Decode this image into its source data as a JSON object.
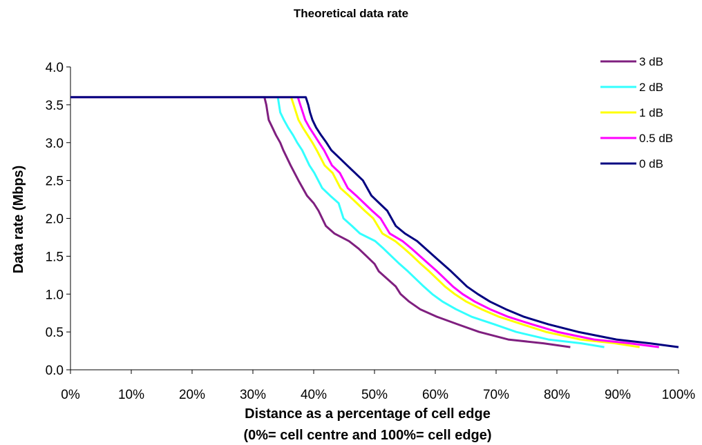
{
  "chart_data": {
    "type": "line",
    "title": "Theoretical data rate",
    "xlabel": "Distance as a percentage of cell edge",
    "xlabel_line2": "(0%= cell centre and 100%= cell edge)",
    "ylabel": "Data rate (Mbps)",
    "xlim": [
      0,
      100
    ],
    "ylim": [
      0,
      4.0
    ],
    "x_ticks": [
      0,
      10,
      20,
      30,
      40,
      50,
      60,
      70,
      80,
      90,
      100
    ],
    "x_tick_labels": [
      "0%",
      "10%",
      "20%",
      "30%",
      "40%",
      "50%",
      "60%",
      "70%",
      "80%",
      "90%",
      "100%"
    ],
    "y_ticks": [
      0,
      0.5,
      1.0,
      1.5,
      2.0,
      2.5,
      3.0,
      3.5,
      4.0
    ],
    "y_tick_labels": [
      "0.0",
      "0.5",
      "1.0",
      "1.5",
      "2.0",
      "2.5",
      "3.0",
      "3.5",
      "4.0"
    ],
    "grid": false,
    "legend_position": "right",
    "series": [
      {
        "name": "3 dB",
        "color": "#7f1f7f",
        "points": [
          [
            0,
            3.6
          ],
          [
            31.9,
            3.6
          ],
          [
            32.2,
            3.5
          ],
          [
            32.4,
            3.4
          ],
          [
            32.6,
            3.3
          ],
          [
            33.2,
            3.2
          ],
          [
            33.8,
            3.1
          ],
          [
            34.5,
            3.0
          ],
          [
            35.0,
            2.9
          ],
          [
            36.2,
            2.7
          ],
          [
            37.5,
            2.5
          ],
          [
            38.9,
            2.3
          ],
          [
            40.0,
            2.2
          ],
          [
            40.8,
            2.1
          ],
          [
            42.0,
            1.9
          ],
          [
            43.4,
            1.8
          ],
          [
            45.8,
            1.7
          ],
          [
            47.4,
            1.6
          ],
          [
            48.7,
            1.5
          ],
          [
            50.0,
            1.4
          ],
          [
            50.7,
            1.3
          ],
          [
            53.5,
            1.1
          ],
          [
            54.3,
            1.0
          ],
          [
            55.7,
            0.9
          ],
          [
            57.5,
            0.8
          ],
          [
            60.3,
            0.7
          ],
          [
            63.7,
            0.6
          ],
          [
            67.2,
            0.5
          ],
          [
            72.0,
            0.4
          ],
          [
            77.8,
            0.35
          ],
          [
            82.2,
            0.3
          ]
        ]
      },
      {
        "name": "2 dB",
        "color": "#33ffff",
        "points": [
          [
            0,
            3.6
          ],
          [
            34.1,
            3.6
          ],
          [
            34.5,
            3.4
          ],
          [
            35.1,
            3.3
          ],
          [
            35.8,
            3.2
          ],
          [
            36.6,
            3.1
          ],
          [
            37.3,
            3.0
          ],
          [
            38.1,
            2.9
          ],
          [
            39.3,
            2.7
          ],
          [
            40.1,
            2.6
          ],
          [
            41.4,
            2.4
          ],
          [
            42.7,
            2.3
          ],
          [
            44.1,
            2.2
          ],
          [
            44.9,
            2.0
          ],
          [
            46.3,
            1.9
          ],
          [
            47.6,
            1.8
          ],
          [
            50.1,
            1.7
          ],
          [
            51.5,
            1.6
          ],
          [
            52.8,
            1.5
          ],
          [
            54.1,
            1.4
          ],
          [
            55.5,
            1.3
          ],
          [
            58.1,
            1.1
          ],
          [
            59.5,
            1.0
          ],
          [
            61.2,
            0.9
          ],
          [
            63.4,
            0.8
          ],
          [
            66.0,
            0.7
          ],
          [
            69.7,
            0.6
          ],
          [
            73.3,
            0.5
          ],
          [
            78.6,
            0.4
          ],
          [
            84.0,
            0.35
          ],
          [
            87.8,
            0.3
          ]
        ]
      },
      {
        "name": "1 dB",
        "color": "#ffff00",
        "points": [
          [
            0,
            3.6
          ],
          [
            36.3,
            3.6
          ],
          [
            36.7,
            3.5
          ],
          [
            37.1,
            3.4
          ],
          [
            37.5,
            3.3
          ],
          [
            38.2,
            3.2
          ],
          [
            39.0,
            3.1
          ],
          [
            39.8,
            3.0
          ],
          [
            40.5,
            2.9
          ],
          [
            41.8,
            2.7
          ],
          [
            43.1,
            2.6
          ],
          [
            44.4,
            2.4
          ],
          [
            45.8,
            2.3
          ],
          [
            47.1,
            2.2
          ],
          [
            48.4,
            2.1
          ],
          [
            49.8,
            2.0
          ],
          [
            51.3,
            1.8
          ],
          [
            53.4,
            1.7
          ],
          [
            54.9,
            1.6
          ],
          [
            56.3,
            1.5
          ],
          [
            57.6,
            1.4
          ],
          [
            59.0,
            1.3
          ],
          [
            61.6,
            1.1
          ],
          [
            63.2,
            1.0
          ],
          [
            65.1,
            0.9
          ],
          [
            67.6,
            0.8
          ],
          [
            70.5,
            0.7
          ],
          [
            74.3,
            0.6
          ],
          [
            78.2,
            0.5
          ],
          [
            83.9,
            0.4
          ],
          [
            89.6,
            0.35
          ],
          [
            93.6,
            0.3
          ]
        ]
      },
      {
        "name": "0.5 dB",
        "color": "#ff00ff",
        "points": [
          [
            0,
            3.6
          ],
          [
            37.4,
            3.6
          ],
          [
            37.8,
            3.5
          ],
          [
            38.2,
            3.4
          ],
          [
            38.6,
            3.3
          ],
          [
            39.3,
            3.2
          ],
          [
            40.1,
            3.1
          ],
          [
            40.9,
            3.0
          ],
          [
            41.7,
            2.9
          ],
          [
            43.0,
            2.7
          ],
          [
            44.3,
            2.6
          ],
          [
            45.6,
            2.4
          ],
          [
            47.0,
            2.3
          ],
          [
            48.3,
            2.2
          ],
          [
            49.6,
            2.1
          ],
          [
            51.0,
            2.0
          ],
          [
            52.5,
            1.8
          ],
          [
            54.6,
            1.7
          ],
          [
            56.1,
            1.6
          ],
          [
            57.5,
            1.5
          ],
          [
            58.9,
            1.4
          ],
          [
            60.3,
            1.3
          ],
          [
            62.9,
            1.1
          ],
          [
            64.5,
            1.0
          ],
          [
            66.5,
            0.9
          ],
          [
            69.0,
            0.8
          ],
          [
            72.0,
            0.7
          ],
          [
            75.9,
            0.6
          ],
          [
            80.1,
            0.5
          ],
          [
            86.1,
            0.4
          ],
          [
            92.0,
            0.35
          ],
          [
            96.8,
            0.3
          ]
        ]
      },
      {
        "name": "0 dB",
        "color": "#000080",
        "points": [
          [
            0,
            3.6
          ],
          [
            38.7,
            3.6
          ],
          [
            39.1,
            3.5
          ],
          [
            39.4,
            3.4
          ],
          [
            39.8,
            3.3
          ],
          [
            40.4,
            3.2
          ],
          [
            41.2,
            3.1
          ],
          [
            42.1,
            3.0
          ],
          [
            42.9,
            2.9
          ],
          [
            44.2,
            2.8
          ],
          [
            45.5,
            2.7
          ],
          [
            46.8,
            2.6
          ],
          [
            48.1,
            2.5
          ],
          [
            49.5,
            2.3
          ],
          [
            50.8,
            2.2
          ],
          [
            52.1,
            2.1
          ],
          [
            53.5,
            1.9
          ],
          [
            55.0,
            1.8
          ],
          [
            57.0,
            1.7
          ],
          [
            58.4,
            1.6
          ],
          [
            59.8,
            1.5
          ],
          [
            61.2,
            1.4
          ],
          [
            62.6,
            1.3
          ],
          [
            65.2,
            1.1
          ],
          [
            67.0,
            1.0
          ],
          [
            69.0,
            0.9
          ],
          [
            71.6,
            0.8
          ],
          [
            74.6,
            0.7
          ],
          [
            78.6,
            0.6
          ],
          [
            83.5,
            0.5
          ],
          [
            89.8,
            0.4
          ],
          [
            95.3,
            0.35
          ],
          [
            100,
            0.3
          ]
        ]
      }
    ]
  }
}
